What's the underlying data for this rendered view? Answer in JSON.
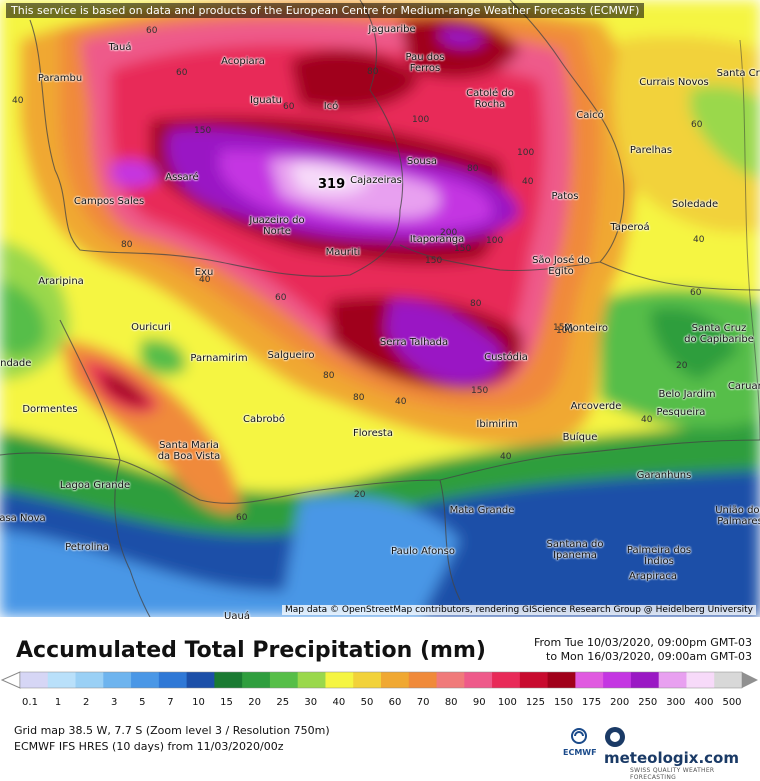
{
  "attribution_top": "This service is based on data and products of the European Centre for Medium-range Weather Forecasts (ECMWF)",
  "map_credit": "Map data © OpenStreetMap contributors, rendering GIScience Research Group @ Heidelberg University",
  "places": [
    "Tauá",
    "Acopiara",
    "Jaguaribe",
    "Pau dos Ferros",
    "Parambu",
    "Iguatu",
    "Icó",
    "Catolé do Rocha",
    "Currais Novos",
    "Santa Cruz",
    "Caicó",
    "Parelhas",
    "Assaré",
    "Campos Sales",
    "Sousa",
    "Cajazeiras",
    "Patos",
    "Juazeiro do Norte",
    "Soledade",
    "Taperoá",
    "Mauriti",
    "Itaporanga",
    "São José do Egito",
    "Araripina",
    "Exu",
    "Ouricuri",
    "Monteiro",
    "Santa Cruz do Capibaribe",
    "Parnamirim",
    "Salgueiro",
    "Serra Talhada",
    "Custódia",
    "Trindade",
    "Belo Jardim",
    "Caruaru",
    "Pesqueira",
    "Dormentes",
    "Cabrobó",
    "Santa Maria da Boa Vista",
    "Floresta",
    "Ibimirim",
    "Arcoverde",
    "Buíque",
    "Lagoa Grande",
    "Garanhuns",
    "Casa Nova",
    "Mata Grande",
    "União dos Palmares",
    "Petrolina",
    "Paulo Afonso",
    "Santana do Ipanema",
    "Palmeira dos Índios",
    "Arapiraca",
    "Uauá"
  ],
  "contour_labels": [
    "40",
    "60",
    "60",
    "80",
    "60",
    "100",
    "80",
    "100",
    "40",
    "60",
    "80",
    "150",
    "150",
    "100",
    "200",
    "150",
    "80",
    "150",
    "40",
    "60",
    "80",
    "40",
    "100",
    "150",
    "80",
    "40",
    "20",
    "60",
    "20",
    "60",
    "40",
    "40"
  ],
  "peak_value": "319",
  "legend": {
    "title": "Accumulated Total Precipitation (mm)",
    "from": "From Tue 10/03/2020, 09:00pm GMT-03",
    "to": "to Mon 16/03/2020, 09:00am GMT-03",
    "ticks": [
      "0.1",
      "1",
      "2",
      "3",
      "5",
      "7",
      "10",
      "15",
      "20",
      "25",
      "30",
      "40",
      "50",
      "60",
      "70",
      "80",
      "90",
      "100",
      "125",
      "150",
      "175",
      "200",
      "250",
      "300",
      "400",
      "500"
    ],
    "colors": [
      "#d6d6f5",
      "#b9e0fa",
      "#9ad0f5",
      "#6eb4ee",
      "#4a97e6",
      "#2f78d6",
      "#1c4fa8",
      "#1a7a32",
      "#2f9e3e",
      "#56be48",
      "#9ad84c",
      "#f5f542",
      "#f2d23a",
      "#f0a832",
      "#f08a3a",
      "#f07a7a",
      "#ee5a8a",
      "#e82a58",
      "#c80a2e",
      "#a0001a",
      "#e05ae0",
      "#c436e2",
      "#9a18c4",
      "#e8a0f0",
      "#f7daf9",
      "#d8d8d8"
    ]
  },
  "info": {
    "grid": "Grid map 38.5 W, 7.7 S (Zoom level 3 / Resolution 750m)",
    "model": "ECMWF IFS HRES (10 days) from 11/03/2020/00z"
  },
  "logos": {
    "ecmwf": "ECMWF",
    "meteologix": "meteologix.com",
    "meteologix_tag": "SWISS QUALITY WEATHER FORECASTING"
  }
}
